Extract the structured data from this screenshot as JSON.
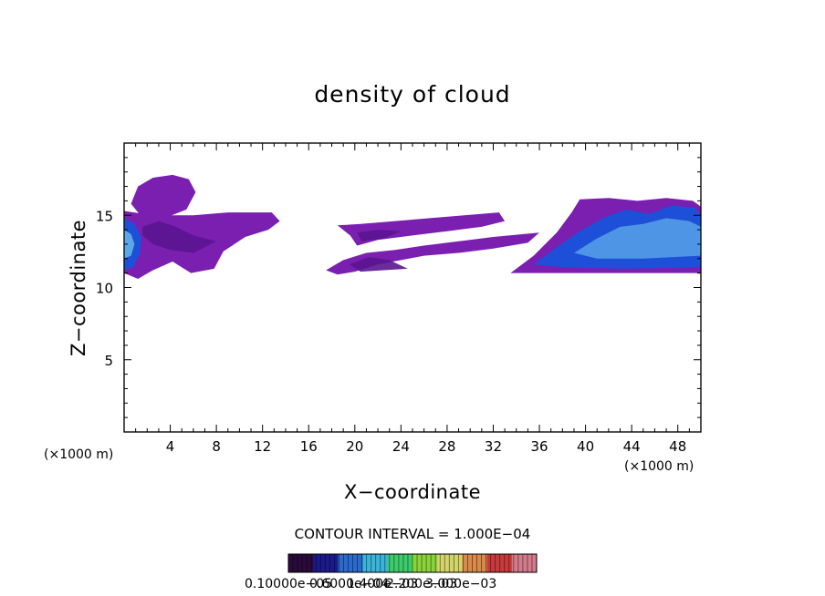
{
  "chart_data": {
    "type": "heatmap",
    "title": "density of cloud",
    "xlabel": "X−coordinate",
    "ylabel": "Z−coordinate",
    "x_unit": "(×1000 m)",
    "y_unit": "(×1000 m)",
    "xlim": [
      0,
      50
    ],
    "ylim": [
      0,
      20
    ],
    "x_ticks": [
      4,
      8,
      12,
      16,
      20,
      24,
      28,
      32,
      36,
      40,
      44,
      48
    ],
    "x_tick_labels": [
      "4",
      "8",
      "12",
      "16",
      "20",
      "24",
      "28",
      "32",
      "36",
      "40",
      "44",
      "48"
    ],
    "y_ticks": [
      5,
      10,
      15
    ],
    "y_tick_labels": [
      "5",
      "10",
      "15"
    ],
    "contour_interval_text": "CONTOUR INTERVAL = 1.000E−04",
    "colorbar": {
      "labels_text": "0.10000e−05",
      "labels_overlap": [
        "0.6000e−04",
        "1.400e−03",
        "2.200e−03",
        "3.000e−03"
      ],
      "colors": [
        "#2a0a3a",
        "#1a1a8a",
        "#2a6acc",
        "#3ab4d8",
        "#3ccc6a",
        "#8ad43a",
        "#d4d46a",
        "#d88a4a",
        "#c83a3a",
        "#d47a8a"
      ]
    },
    "regions": [
      {
        "name": "left-cloud-upper",
        "x_range": [
          0.5,
          6.2
        ],
        "z_range": [
          14.5,
          17.8
        ],
        "color": "#7a1fb0"
      },
      {
        "name": "left-cloud-band",
        "x_range": [
          0,
          13.5
        ],
        "z_range": [
          11.2,
          15.2
        ],
        "color": "#7a1fb0"
      },
      {
        "name": "left-cloud-core",
        "x_range": [
          0,
          1.5
        ],
        "z_range": [
          11.0,
          15.0
        ],
        "color": "#2a6acc"
      },
      {
        "name": "mid-cloud-upper",
        "x_range": [
          18.5,
          33.0
        ],
        "z_range": [
          13.0,
          15.2
        ],
        "color": "#7a1fb0"
      },
      {
        "name": "mid-cloud-lower",
        "x_range": [
          17.5,
          36.0
        ],
        "z_range": [
          11.0,
          13.8
        ],
        "color": "#7a1fb0"
      },
      {
        "name": "right-cloud",
        "x_range": [
          33.5,
          50
        ],
        "z_range": [
          11.0,
          16.2
        ],
        "color": "#7a1fb0"
      },
      {
        "name": "right-cloud-core",
        "x_range": [
          36.0,
          50
        ],
        "z_range": [
          11.5,
          15.8
        ],
        "color": "#1e4fd8"
      }
    ]
  },
  "colors": {
    "cloud": "#7a1fb0",
    "cloud_dark": "#5a1490",
    "core": "#1e4fd8",
    "core_light": "#5aa8e8"
  }
}
